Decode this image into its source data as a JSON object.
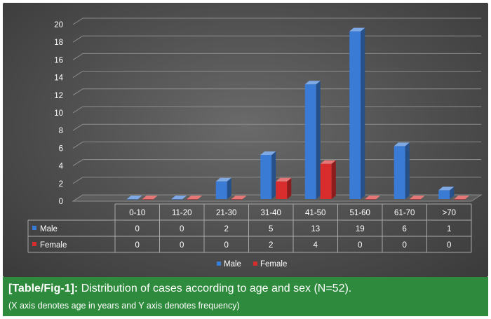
{
  "chart_data": {
    "type": "bar",
    "categories": [
      "0-10",
      "11-20",
      "21-30",
      "31-40",
      "41-50",
      "51-60",
      "61-70",
      ">70"
    ],
    "series": [
      {
        "name": "Male",
        "values": [
          0,
          0,
          2,
          5,
          13,
          19,
          6,
          1
        ],
        "color": "#3a7bd5"
      },
      {
        "name": "Female",
        "values": [
          0,
          0,
          0,
          2,
          4,
          0,
          0,
          0
        ],
        "color": "#d92d2d"
      }
    ],
    "ylim": [
      0,
      20
    ],
    "yticks": [
      0,
      2,
      4,
      6,
      8,
      10,
      12,
      14,
      16,
      18,
      20
    ],
    "grid": true,
    "legend": "bottom",
    "data_table": true
  },
  "caption": {
    "label": "[Table/Fig-1]:",
    "text": " Distribution of cases according to age and sex (N=52).",
    "subtext": "(X axis denotes age in years and Y axis denotes frequency)"
  }
}
